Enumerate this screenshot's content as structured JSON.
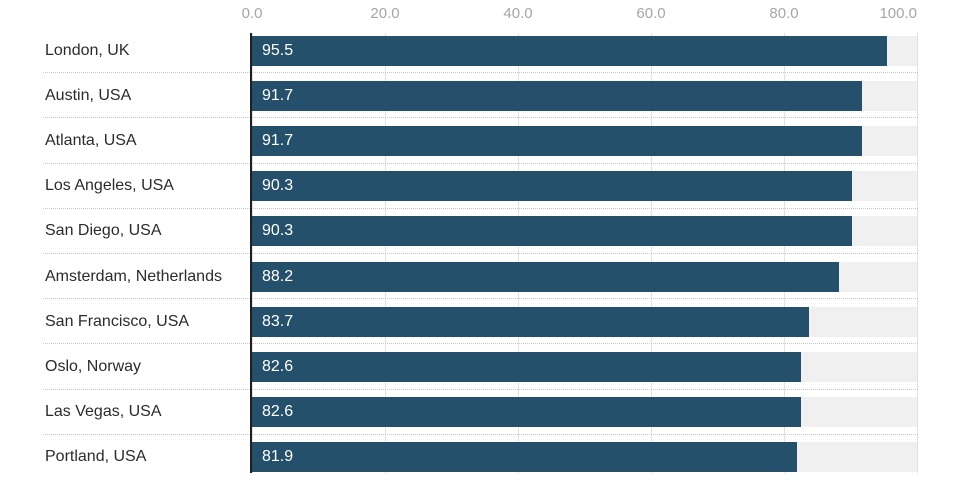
{
  "chart_data": {
    "type": "bar",
    "orientation": "horizontal",
    "title": "",
    "categories": [
      "London, UK",
      "Austin, USA",
      "Atlanta, USA",
      "Los Angeles, USA",
      "San Diego, USA",
      "Amsterdam, Netherlands",
      "San Francisco, USA",
      "Oslo, Norway",
      "Las Vegas, USA",
      "Portland, USA"
    ],
    "values": [
      95.5,
      91.7,
      91.7,
      90.3,
      90.3,
      88.2,
      83.7,
      82.6,
      82.6,
      81.9
    ],
    "xlim": [
      0,
      100
    ],
    "x_ticks": [
      0,
      20,
      40,
      60,
      80,
      100
    ],
    "x_tick_labels": [
      "0.0",
      "20.0",
      "40.0",
      "60.0",
      "80.0",
      "100.0"
    ],
    "grid": "vertical",
    "legend": "none",
    "xlabel": "",
    "ylabel": "",
    "colors": {
      "bar": "#24506c",
      "track": "#f0f0f0",
      "gridline": "#e2e2e2",
      "zero_axis_line": "#1f1f1f",
      "tick_label": "#a6a6a6",
      "category_label": "#2b2b2b",
      "value_label": "#ffffff",
      "row_separator": "#c9c9c9",
      "background": "#ffffff"
    }
  }
}
